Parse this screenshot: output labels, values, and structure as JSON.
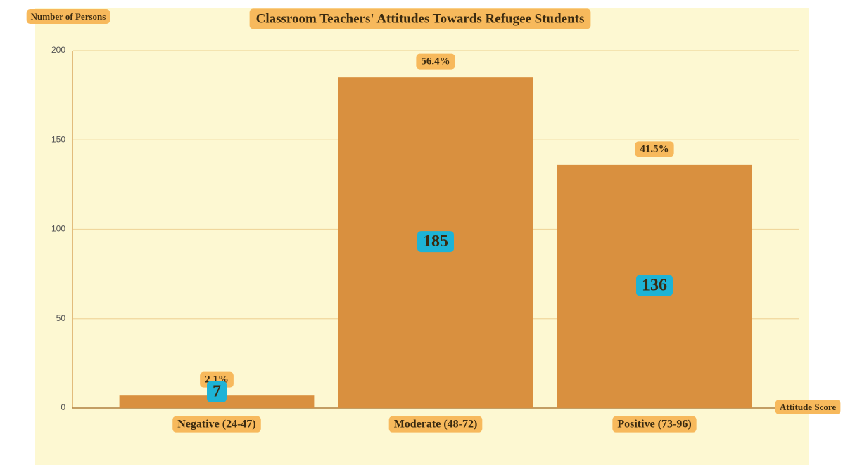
{
  "chart_data": {
    "type": "bar",
    "title": "Classroom Teachers' Attitudes Towards Refugee Students",
    "y_label": "Number of Persons",
    "x_label": "Attitude Score",
    "categories": [
      "Negative (24-47)",
      "Moderate (48-72)",
      "Positive (73-96)"
    ],
    "values": [
      7,
      185,
      136
    ],
    "percent_labels": [
      "2.1%",
      "56.4%",
      "41.5%"
    ],
    "color": "#d9903f",
    "ylim": [
      0,
      200
    ],
    "yticks": [
      0,
      50,
      100,
      150,
      200
    ],
    "grid": true
  }
}
